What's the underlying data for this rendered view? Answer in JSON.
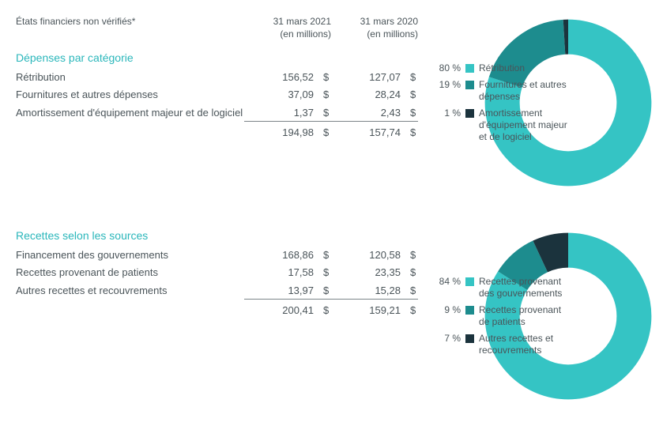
{
  "header": {
    "table_label_line1": "États financiers non vérifiés*",
    "col1_line1": "31 mars 2021",
    "col1_line2": "(en millions)",
    "col2_line1": "31 mars 2020",
    "col2_line2": "(en millions)"
  },
  "currency_symbol": "$",
  "colors": {
    "accent": "#2bb7bb",
    "text": "#4a5459",
    "series1": "#35c4c4",
    "series2": "#1d8c8e",
    "series3": "#1b333d",
    "background": "#ffffff",
    "rule": "#7c8589"
  },
  "expenses": {
    "title": "Dépenses par catégorie",
    "rows": [
      {
        "label": "Rétribution",
        "v2021": "156,52",
        "v2020": "127,07"
      },
      {
        "label": "Fournitures et autres dépenses",
        "v2021": "37,09",
        "v2020": "28,24"
      },
      {
        "label": "Amortissement d'équipement majeur et de logiciel",
        "v2021": "1,37",
        "v2020": "2,43"
      }
    ],
    "total": {
      "v2021": "194,98",
      "v2020": "157,74"
    },
    "chart": {
      "type": "donut",
      "thickness_ratio": 0.2,
      "slices": [
        {
          "pct": 80,
          "pct_label": "80 %",
          "label": "Rétribution",
          "color": "#35c4c4"
        },
        {
          "pct": 19,
          "pct_label": "19 %",
          "label": "Fournitures et autres dépenses",
          "color": "#1d8c8e"
        },
        {
          "pct": 1,
          "pct_label": "1 %",
          "label": "Amortissement d'équipement majeur et de logiciel",
          "color": "#1b333d"
        }
      ]
    }
  },
  "revenues": {
    "title": "Recettes selon les sources",
    "rows": [
      {
        "label": "Financement des gouvernements",
        "v2021": "168,86",
        "v2020": "120,58"
      },
      {
        "label": "Recettes provenant de patients",
        "v2021": "17,58",
        "v2020": "23,35"
      },
      {
        "label": "Autres recettes et recouvrements",
        "v2021": "13,97",
        "v2020": "15,28"
      }
    ],
    "total": {
      "v2021": "200,41",
      "v2020": "159,21"
    },
    "chart": {
      "type": "donut",
      "thickness_ratio": 0.2,
      "slices": [
        {
          "pct": 84,
          "pct_label": "84 %",
          "label": "Recettes provenant des gouvernements",
          "color": "#35c4c4"
        },
        {
          "pct": 9,
          "pct_label": "9 %",
          "label": "Recettes provenant de patients",
          "color": "#1d8c8e"
        },
        {
          "pct": 7,
          "pct_label": "7 %",
          "label": "Autres recettes et recouvrements",
          "color": "#1b333d"
        }
      ]
    }
  }
}
